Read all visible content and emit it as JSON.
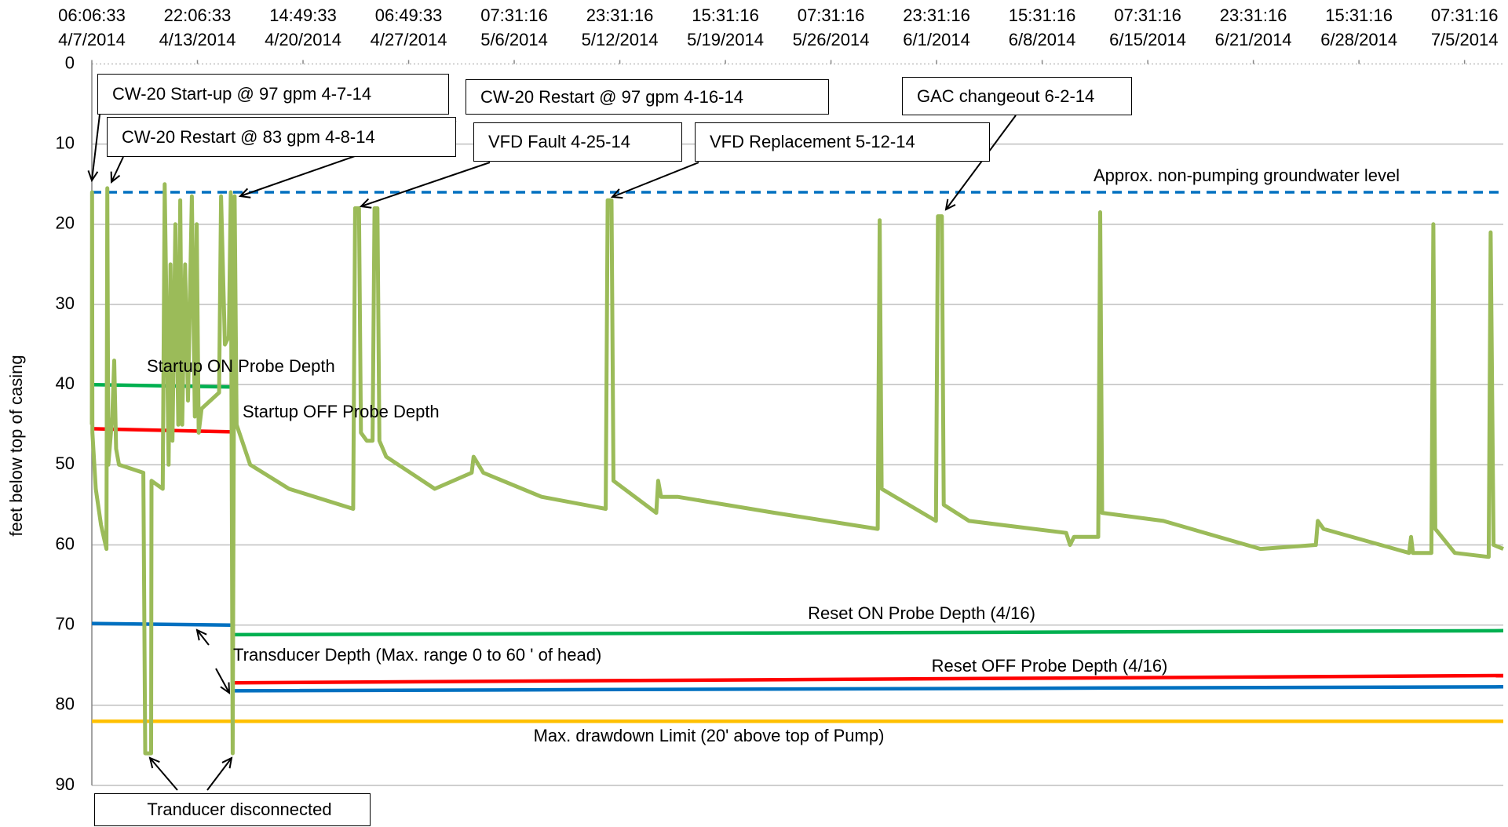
{
  "chart_data": {
    "type": "line",
    "y_label": "feet below top of casing",
    "inverted": true,
    "grid": true,
    "xlim": [
      "2014-04-07T06:06:33",
      "2014-07-07T18:14"
    ],
    "xticks": [
      {
        "value": "2014-04-07T06:06:33",
        "label": "06:06:33\n4/7/2014"
      },
      {
        "value": "2014-04-13T22:06:33",
        "label": "22:06:33\n4/13/2014"
      },
      {
        "value": "2014-04-20T14:49:33",
        "label": "14:49:33\n4/20/2014"
      },
      {
        "value": "2014-04-27T06:49:33",
        "label": "06:49:33\n4/27/2014"
      },
      {
        "value": "2014-05-06T07:31:16",
        "label": "07:31:16\n5/6/2014"
      },
      {
        "value": "2014-05-12T23:31:16",
        "label": "23:31:16\n5/12/2014"
      },
      {
        "value": "2014-05-19T15:31:16",
        "label": "15:31:16\n5/19/2014"
      },
      {
        "value": "2014-05-26T07:31:16",
        "label": "07:31:16\n5/26/2014"
      },
      {
        "value": "2014-06-01T23:31:16",
        "label": "23:31:16\n6/1/2014"
      },
      {
        "value": "2014-06-08T15:31:16",
        "label": "15:31:16\n6/8/2014"
      },
      {
        "value": "2014-06-15T07:31:16",
        "label": "07:31:16\n6/15/2014"
      },
      {
        "value": "2014-06-21T23:31:16",
        "label": "23:31:16\n6/21/2014"
      },
      {
        "value": "2014-06-28T15:31:16",
        "label": "15:31:16\n6/28/2014"
      },
      {
        "value": "2014-07-05T07:31:16",
        "label": "07:31:16\n7/5/2014"
      }
    ],
    "ylim": [
      0,
      90
    ],
    "yticks": [
      0,
      10,
      20,
      30,
      40,
      50,
      60,
      70,
      80,
      90
    ],
    "series": [
      {
        "color": "#9bbb59",
        "x": [
          "2014-04-07T06:06",
          "2014-04-07T06:30",
          "2014-04-07T07:00",
          "2014-04-07T12:00",
          "2014-04-07T20:00",
          "2014-04-08T04:11",
          "2014-04-08T05:30",
          "2014-04-08T07:08",
          "2014-04-08T13:00",
          "2014-04-08T15:58",
          "2014-04-08T18:53",
          "2014-04-08T23:18",
          "2014-04-10T12:06",
          "2014-04-10T15:03",
          "2014-04-10T23:53",
          "2014-04-11T00:30",
          "2014-04-11T17:33",
          "2014-04-11T20:30",
          "2014-04-12T02:23",
          "2014-04-12T05:20",
          "2014-04-12T08:15",
          "2014-04-12T12:40",
          "2014-04-12T17:05",
          "2014-04-12T20:02",
          "2014-04-12T22:59",
          "2014-04-13T03:24",
          "2014-04-13T07:49",
          "2014-04-13T13:42",
          "2014-04-13T18:07",
          "2014-04-13T21:04",
          "2014-04-14T00:01",
          "2014-04-14T04:28",
          "2014-04-15T07:05",
          "2014-04-15T10:02",
          "2014-04-15T15:58",
          "2014-04-15T21:52",
          "2014-04-16T00:49",
          "2014-04-16T03:46",
          "2014-04-16T06:43",
          "2014-04-16T09:40",
          "2014-04-17T06:23",
          "2014-04-19T17:31",
          "2014-04-23T18:48",
          "2014-04-23T21:45",
          "2014-04-24T03:37",
          "2014-04-24T06:35",
          "2014-04-24T15:24",
          "2014-04-25T00:14",
          "2014-04-25T03:12",
          "2014-04-25T07:36",
          "2014-04-25T10:34",
          "2014-04-25T20:53",
          "2014-04-29T12:27",
          "2014-05-02T16:13",
          "2014-05-02T20:12",
          "2014-05-03T16:09",
          "2014-05-08T01:00",
          "2014-05-12T02:10",
          "2014-05-12T05:07",
          "2014-05-12T10:59",
          "2014-05-12T13:57",
          "2014-05-15T06:43",
          "2014-05-15T09:40",
          "2014-05-15T14:05",
          "2014-05-16T15:06",
          "2014-05-22T18:19",
          "2014-05-29T06:19",
          "2014-05-29T09:16",
          "2014-05-29T12:13",
          "2014-06-01T22:38",
          "2014-06-02T01:35",
          "2014-06-02T07:28",
          "2014-06-02T10:25",
          "2014-06-04T00:40",
          "2014-06-10T03:53",
          "2014-06-10T09:46",
          "2014-06-10T15:39",
          "2014-06-12T04:26",
          "2014-06-12T07:24",
          "2014-06-12T10:21",
          "2014-06-16T07:03",
          "2014-06-22T10:16",
          "2014-06-25T22:09",
          "2014-06-26T01:06",
          "2014-06-26T09:56",
          "2014-07-01T19:29",
          "2014-07-01T22:26",
          "2014-07-02T01:22",
          "2014-07-03T05:20",
          "2014-07-03T08:17",
          "2014-07-03T11:14",
          "2014-07-04T16:41",
          "2014-07-06T20:10",
          "2014-07-06T23:07",
          "2014-07-07T03:32",
          "2014-07-07T18:14"
        ],
        "values": [
          45,
          16,
          46,
          53,
          57.5,
          60.5,
          15.5,
          50,
          44,
          37,
          48,
          50,
          51,
          86,
          86,
          52,
          53,
          15,
          50,
          25,
          47,
          20,
          45,
          17,
          45,
          25,
          42,
          16.5,
          44,
          20,
          46,
          43,
          41,
          16.5,
          35,
          34,
          16,
          86,
          16.5,
          45,
          50,
          53,
          55.5,
          18,
          18,
          46,
          47,
          47,
          18,
          18,
          47,
          49,
          53,
          51,
          49,
          51,
          54,
          55.5,
          17,
          17,
          52,
          56,
          52,
          54,
          54,
          56,
          58,
          19.5,
          53,
          57,
          19,
          19,
          55,
          57,
          58.5,
          60,
          59,
          59,
          18.5,
          56,
          57,
          60.5,
          60,
          57,
          58,
          61,
          59,
          61,
          61,
          20,
          58,
          61,
          61.5,
          21,
          60,
          60.5
        ]
      }
    ],
    "reference_lines": [
      {
        "label": "Approx. non-pumping groundwater level",
        "color": "#0070c0",
        "dashed": true,
        "x": [
          "2014-04-07T06:06:33",
          "2014-07-07T18:14"
        ],
        "values": [
          16,
          16
        ]
      },
      {
        "label": "Startup ON Probe Depth",
        "color": "#00b050",
        "x": [
          "2014-04-07T06:06:33",
          "2014-04-16T04:00"
        ],
        "values": [
          40,
          40.3
        ]
      },
      {
        "label": "Startup OFF Probe Depth",
        "color": "#ff0000",
        "x": [
          "2014-04-07T06:06:33",
          "2014-04-16T04:00"
        ],
        "values": [
          45.5,
          45.9
        ]
      },
      {
        "label": "Transducer Depth (Max. range 0 to 60 ' of head)",
        "color": "#0070c0",
        "x": [
          "2014-04-07T06:06:33",
          "2014-04-16T04:00",
          "2014-04-16T04:00",
          "2014-04-16T04:00",
          "2014-07-07T18:14"
        ],
        "values": [
          69.8,
          70,
          null,
          78.2,
          77.7
        ]
      },
      {
        "label": "Reset ON Probe Depth (4/16)",
        "color": "#00b050",
        "x": [
          "2014-04-16T04:00",
          "2014-07-07T18:14"
        ],
        "values": [
          71.2,
          70.7
        ]
      },
      {
        "label": "Reset OFF Probe Depth (4/16)",
        "color": "#ff0000",
        "x": [
          "2014-04-16T04:00",
          "2014-07-07T18:14"
        ],
        "values": [
          77.2,
          76.3
        ]
      },
      {
        "label": "Max. drawdown Limit (20' above top of Pump)",
        "color": "#ffc000",
        "x": [
          "2014-04-07T06:06:33",
          "2014-07-07T18:14"
        ],
        "values": [
          82,
          82
        ]
      }
    ],
    "annotations": [
      {
        "text": "CW-20 Start-up @ 97 gpm 4-7-14"
      },
      {
        "text": "CW-20 Restart @ 83 gpm 4-8-14"
      },
      {
        "text": "CW-20 Restart @ 97 gpm 4-16-14"
      },
      {
        "text": "VFD Fault 4-25-14"
      },
      {
        "text": "VFD Replacement 5-12-14"
      },
      {
        "text": "GAC changeout 6-2-14"
      },
      {
        "text": "Tranducer disconnected"
      }
    ]
  }
}
